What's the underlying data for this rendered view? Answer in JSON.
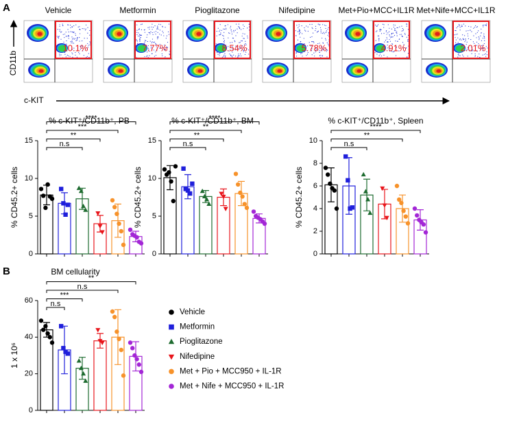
{
  "panel_labels": {
    "a": "A",
    "b": "B"
  },
  "flow": {
    "y_axis": "CD11b",
    "x_axis": "c-KIT",
    "samples": [
      {
        "name": "Vehicle",
        "gate": "10.1%"
      },
      {
        "name": "Metformin",
        "gate": "7.77%"
      },
      {
        "name": "Pioglitazone",
        "gate": "8.54%"
      },
      {
        "name": "Nifedipine",
        "gate": "5.78%"
      },
      {
        "name": "Met+Pio+MCC+IL1R",
        "gate": "4.91%"
      },
      {
        "name": "Met+Nife+MCC+IL1R",
        "gate": "2.01%"
      }
    ]
  },
  "legend": {
    "entries": [
      {
        "name": "Vehicle",
        "color": "#000000",
        "marker": "circle"
      },
      {
        "name": "Metformin",
        "color": "#1f1fdb",
        "marker": "square"
      },
      {
        "name": "Pioglitazone",
        "color": "#1d6b2f",
        "marker": "triangle-up"
      },
      {
        "name": "Nifedipine",
        "color": "#e8151b",
        "marker": "triangle-down"
      },
      {
        "name": "Met + Pio + MCC950 + IL-1R",
        "color": "#f7922a",
        "marker": "circle"
      },
      {
        "name": "Met + Nife + MCC950 + IL-1R",
        "color": "#a326d6",
        "marker": "circle"
      }
    ]
  },
  "chart_data": [
    {
      "type": "bar",
      "title": "% c-KIT⁺/CD11b⁺, PB",
      "y_label": "% CD45.2+ cells",
      "categories": [
        null,
        null,
        null,
        null,
        null,
        null
      ],
      "values": [
        7.8,
        6.7,
        7.3,
        4.0,
        4.4,
        2.3
      ],
      "errors": [
        1.3,
        1.4,
        1.4,
        1.1,
        2.2,
        0.7
      ],
      "points": [
        [
          8.6,
          7.7,
          6.1,
          9.2,
          7.6,
          7.3
        ],
        [
          8.6,
          6.7,
          5.2,
          6.5
        ],
        [
          8.7,
          8.3,
          6.3,
          5.8
        ],
        [
          5.4,
          3.7,
          2.9
        ],
        [
          7.1,
          6.2,
          5.3,
          4.0,
          3.0,
          1.2
        ],
        [
          3.2,
          2.6,
          2.4,
          2.2,
          1.6,
          1.4
        ]
      ],
      "ylim": [
        0,
        15
      ],
      "yticks": [
        0,
        5,
        10,
        15
      ],
      "brackets": [
        {
          "from": 0,
          "to": 2,
          "label": "n.s"
        },
        {
          "from": 0,
          "to": 3,
          "label": "**"
        },
        {
          "from": 0,
          "to": 4,
          "label": "***"
        },
        {
          "from": 0,
          "to": 5,
          "label": "****"
        }
      ]
    },
    {
      "type": "bar",
      "title": "% c-KIT⁺/CD11b⁺, BM",
      "y_label": "% CD45.2+ cells",
      "categories": [
        null,
        null,
        null,
        null,
        null,
        null
      ],
      "values": [
        10.1,
        8.9,
        7.6,
        7.5,
        8.0,
        4.7
      ],
      "errors": [
        1.6,
        1.6,
        0.8,
        1.1,
        1.6,
        0.6
      ],
      "points": [
        [
          11.2,
          10.5,
          10.8,
          9.6,
          7.0,
          11.6
        ],
        [
          11.3,
          8.6,
          8.4,
          8.0,
          9.3
        ],
        [
          8.3,
          7.6,
          7.2,
          6.6
        ],
        [
          8.0,
          7.6,
          6.0
        ],
        [
          10.6,
          9.2,
          8.1,
          7.6,
          6.6,
          6.1
        ],
        [
          5.6,
          5.0,
          4.8,
          4.6,
          4.3,
          4.0
        ]
      ],
      "ylim": [
        0,
        15
      ],
      "yticks": [
        0,
        5,
        10,
        15
      ],
      "brackets": [
        {
          "from": 0,
          "to": 2,
          "label": "n.s"
        },
        {
          "from": 0,
          "to": 3,
          "label": "**"
        },
        {
          "from": 0,
          "to": 4,
          "label": "**"
        },
        {
          "from": 0,
          "to": 5,
          "label": "****"
        }
      ]
    },
    {
      "type": "bar",
      "title": "% c-KIT⁺/CD11b⁺, Spleen",
      "y_label": "% CD45.2+ cells",
      "categories": [
        null,
        null,
        null,
        null,
        null,
        null
      ],
      "values": [
        6.1,
        6.0,
        5.2,
        4.4,
        4.0,
        3.0
      ],
      "errors": [
        1.5,
        2.5,
        1.4,
        1.3,
        1.2,
        0.9
      ],
      "points": [
        [
          7.6,
          7.0,
          6.2,
          5.8,
          5.6,
          4.0
        ],
        [
          8.6,
          6.5,
          4.0,
          4.1
        ],
        [
          7.0,
          5.5,
          4.8,
          3.6
        ],
        [
          5.8,
          4.3,
          3.2
        ],
        [
          6.0,
          4.8,
          4.5,
          3.8,
          3.3,
          2.7
        ],
        [
          4.0,
          3.4,
          3.0,
          2.8,
          2.6,
          1.9
        ]
      ],
      "ylim": [
        0,
        10
      ],
      "yticks": [
        0,
        2,
        4,
        6,
        8,
        10
      ],
      "brackets": [
        {
          "from": 0,
          "to": 2,
          "label": "n.s"
        },
        {
          "from": 0,
          "to": 4,
          "label": "**"
        },
        {
          "from": 0,
          "to": 5,
          "label": "****"
        }
      ]
    },
    {
      "type": "bar",
      "title": "BM cellularity",
      "y_label": "1 x 10⁶",
      "categories": [
        null,
        null,
        null,
        null,
        null,
        null
      ],
      "values": [
        44,
        33,
        23,
        38,
        40,
        29.5
      ],
      "errors": [
        4,
        13,
        6,
        4,
        15,
        8
      ],
      "points": [
        [
          49,
          44,
          46,
          42,
          40,
          37
        ],
        [
          46,
          34,
          32,
          31
        ],
        [
          27,
          23,
          20,
          16
        ],
        [
          44,
          38,
          37
        ],
        [
          54,
          51,
          43,
          39,
          33,
          19
        ],
        [
          37,
          34,
          30,
          28,
          25,
          21
        ]
      ],
      "ylim": [
        0,
        60
      ],
      "yticks": [
        0,
        20,
        40,
        60
      ],
      "brackets": [
        {
          "from": 0,
          "to": 1,
          "label": "n.s"
        },
        {
          "from": 0,
          "to": 2,
          "label": "***"
        },
        {
          "from": 0,
          "to": 4,
          "label": "n.s"
        },
        {
          "from": 0,
          "to": 5,
          "label": "**"
        }
      ]
    }
  ]
}
